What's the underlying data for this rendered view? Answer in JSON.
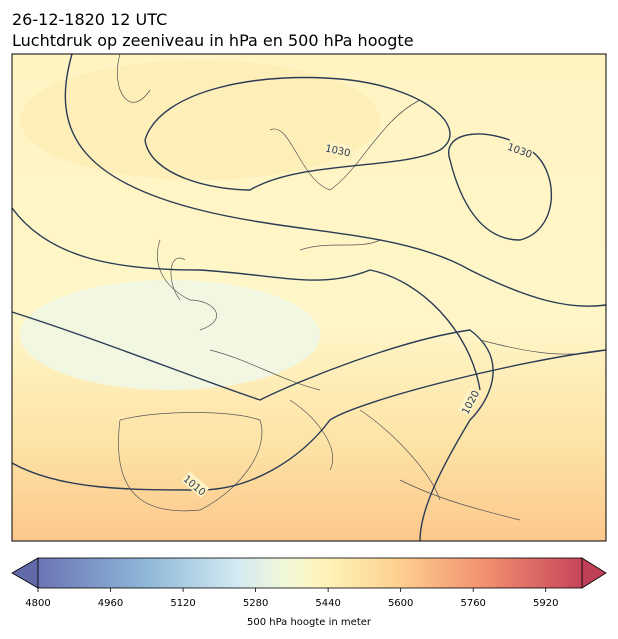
{
  "header": {
    "title": "26-12-1820 12 UTC",
    "subtitle": "Luchtdruk op zeeniveau in hPa en 500 hPa hoogte"
  },
  "map": {
    "contour_labels": [
      1030,
      1030,
      1020,
      1010
    ]
  },
  "colorbar": {
    "label": "500 hPa hoogte in meter",
    "range": [
      4800,
      6000
    ],
    "ticks": [
      4800,
      4960,
      5120,
      5280,
      5440,
      5600,
      5760,
      5920
    ]
  }
}
